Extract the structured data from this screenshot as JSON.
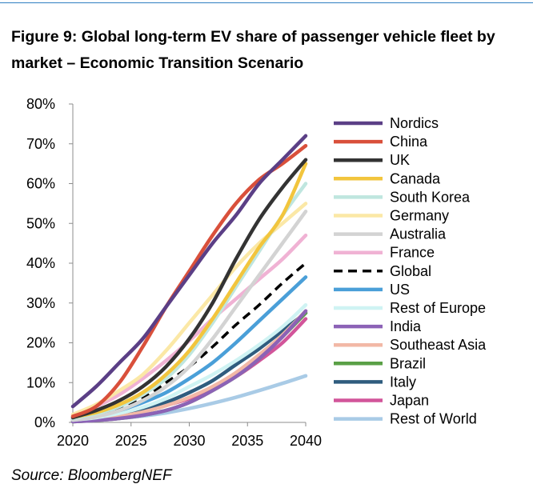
{
  "title": "Figure 9: Global long-term EV share of passenger vehicle fleet by market – Economic Transition Scenario",
  "source": "Source: BloombergNEF",
  "chart_data": {
    "type": "line",
    "title": "Figure 9: Global long-term EV share of passenger vehicle fleet by market – Economic Transition Scenario",
    "xlabel": "",
    "ylabel": "",
    "x": [
      2020,
      2022,
      2024,
      2026,
      2028,
      2030,
      2032,
      2034,
      2036,
      2038,
      2040
    ],
    "xticks": [
      2020,
      2025,
      2030,
      2035,
      2040
    ],
    "yticks": [
      "0%",
      "10%",
      "20%",
      "30%",
      "40%",
      "50%",
      "60%",
      "70%",
      "80%"
    ],
    "xlim": [
      2020,
      2040
    ],
    "ylim": [
      0,
      80
    ],
    "yunit": "%",
    "grid": false,
    "legend_position": "right",
    "series": [
      {
        "name": "Nordics",
        "color": "#5b3f86",
        "dash": false,
        "values": [
          4,
          9,
          15,
          21,
          29,
          37,
          45,
          52,
          60,
          66,
          72
        ]
      },
      {
        "name": "China",
        "color": "#d9503b",
        "dash": false,
        "values": [
          1.5,
          4,
          10,
          19,
          29,
          38,
          47,
          55,
          61,
          65,
          69.5
        ]
      },
      {
        "name": "UK",
        "color": "#333333",
        "dash": false,
        "values": [
          1.2,
          3,
          5.5,
          9,
          14,
          21,
          30,
          41,
          51,
          59,
          66
        ]
      },
      {
        "name": "Canada",
        "color": "#f2c53d",
        "dash": false,
        "values": [
          1.3,
          2.5,
          4.5,
          7.5,
          12,
          18,
          26,
          35,
          44,
          52,
          65
        ]
      },
      {
        "name": "South Korea",
        "color": "#bfe6df",
        "dash": false,
        "values": [
          1,
          2.2,
          4,
          7,
          11,
          17,
          25,
          34,
          43,
          52,
          60
        ]
      },
      {
        "name": "Germany",
        "color": "#fbe8a6",
        "dash": false,
        "values": [
          2,
          4.5,
          8,
          12,
          18,
          25,
          32,
          39,
          45,
          50,
          55
        ]
      },
      {
        "name": "Australia",
        "color": "#d3d3d3",
        "dash": false,
        "values": [
          0.6,
          1.4,
          3,
          5.5,
          9,
          14,
          21,
          29,
          37,
          45,
          53
        ]
      },
      {
        "name": "France",
        "color": "#f0b2d4",
        "dash": false,
        "values": [
          1.8,
          4,
          7,
          11,
          15.5,
          20.5,
          26,
          31,
          36,
          41,
          47
        ]
      },
      {
        "name": "Global",
        "color": "#000000",
        "dash": true,
        "values": [
          1,
          2,
          3.5,
          6,
          10,
          14,
          19,
          24.5,
          29.5,
          35,
          40
        ]
      },
      {
        "name": "US",
        "color": "#4a9fd8",
        "dash": false,
        "values": [
          0.7,
          1.5,
          3,
          5,
          7.5,
          11,
          15,
          20,
          25.5,
          31,
          36.5
        ]
      },
      {
        "name": "Rest of Europe",
        "color": "#cff3f3",
        "dash": false,
        "values": [
          0.6,
          1.2,
          2.3,
          3.8,
          6,
          9,
          12,
          15.5,
          19.5,
          24,
          29.5
        ]
      },
      {
        "name": "India",
        "color": "#8c62b6",
        "dash": false,
        "values": [
          0.2,
          0.5,
          1,
          1.8,
          3,
          5,
          8,
          11.5,
          16,
          21.5,
          28
        ]
      },
      {
        "name": "Southeast Asia",
        "color": "#f2b8a6",
        "dash": false,
        "values": [
          0.4,
          0.8,
          1.5,
          2.6,
          4.2,
          6.3,
          9,
          12.5,
          17,
          22,
          28
        ]
      },
      {
        "name": "Brazil",
        "color": "#5aa046",
        "dash": false,
        "values": [
          0.2,
          0.5,
          1,
          1.8,
          3,
          5,
          8,
          11.5,
          16,
          21.5,
          27.5
        ]
      },
      {
        "name": "Italy",
        "color": "#2f5c7e",
        "dash": false,
        "values": [
          0.6,
          1.2,
          2,
          3.2,
          5,
          7.5,
          10.5,
          14.5,
          18.5,
          23,
          27.5
        ]
      },
      {
        "name": "Japan",
        "color": "#d2559a",
        "dash": false,
        "values": [
          0.8,
          1.3,
          2,
          3,
          4.3,
          6,
          8.5,
          11.5,
          15.5,
          20,
          26
        ]
      },
      {
        "name": "Rest of World",
        "color": "#a9cbe6",
        "dash": false,
        "values": [
          0.3,
          0.6,
          1,
          1.6,
          2.4,
          3.5,
          4.8,
          6.3,
          8,
          9.8,
          11.7
        ]
      }
    ]
  }
}
